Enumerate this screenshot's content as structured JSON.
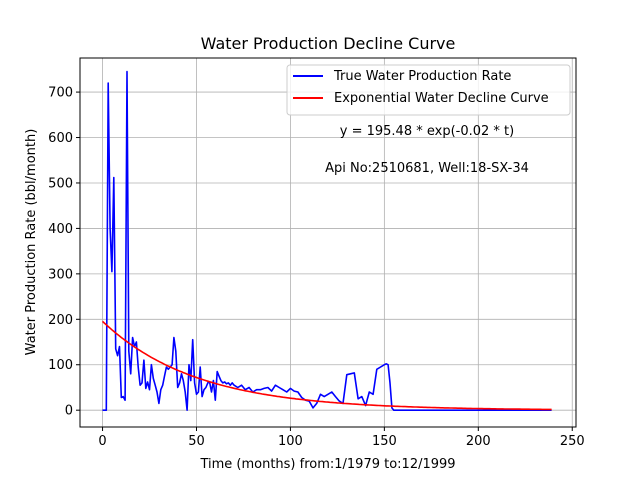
{
  "chart_data": {
    "type": "line",
    "title": "Water Production Decline Curve",
    "xlabel": "Time (months) from:1/1979 to:12/1999",
    "ylabel": "Water Production Rate (bbl/month)",
    "xlim": [
      -12,
      252
    ],
    "ylim": [
      -37,
      775
    ],
    "xticks": [
      0,
      50,
      100,
      150,
      200,
      250
    ],
    "yticks": [
      0,
      100,
      200,
      300,
      400,
      500,
      600,
      700
    ],
    "grid": true,
    "legend_position": "top-right",
    "annotations": [
      "y = 195.48 * exp(-0.02 * t)",
      "Api No:2510681, Well:18-SX-34"
    ],
    "series": [
      {
        "name": "True Water Production Rate",
        "color": "#0000ff",
        "x": [
          0,
          2,
          3,
          4,
          5,
          6,
          7,
          8,
          9,
          10,
          11,
          12,
          13,
          14,
          15,
          16,
          17,
          18,
          19,
          20,
          21,
          22,
          23,
          24,
          25,
          26,
          27,
          28,
          29,
          30,
          31,
          32,
          33,
          34,
          35,
          36,
          37,
          38,
          39,
          40,
          41,
          42,
          43,
          44,
          45,
          46,
          47,
          48,
          49,
          50,
          51,
          52,
          53,
          54,
          55,
          56,
          57,
          58,
          59,
          60,
          61,
          62,
          63,
          64,
          65,
          66,
          67,
          68,
          69,
          70,
          72,
          74,
          76,
          78,
          80,
          82,
          84,
          86,
          88,
          90,
          92,
          94,
          96,
          98,
          100,
          102,
          104,
          106,
          108,
          110,
          112,
          114,
          116,
          118,
          120,
          122,
          124,
          126,
          128,
          130,
          132,
          134,
          136,
          138,
          140,
          142,
          144,
          146,
          148,
          150,
          151,
          152,
          153,
          154,
          155,
          156,
          157,
          239
        ],
        "values": [
          0,
          0,
          720,
          400,
          305,
          512,
          135,
          120,
          140,
          28,
          30,
          22,
          745,
          130,
          80,
          160,
          140,
          150,
          95,
          55,
          60,
          110,
          48,
          62,
          45,
          100,
          70,
          55,
          40,
          15,
          45,
          55,
          75,
          95,
          90,
          95,
          100,
          160,
          130,
          50,
          60,
          80,
          65,
          40,
          0,
          100,
          65,
          155,
          60,
          35,
          40,
          95,
          30,
          45,
          50,
          60,
          62,
          40,
          65,
          22,
          85,
          75,
          65,
          60,
          62,
          58,
          60,
          55,
          60,
          55,
          50,
          55,
          45,
          50,
          40,
          45,
          45,
          48,
          50,
          42,
          55,
          50,
          45,
          40,
          48,
          42,
          40,
          28,
          22,
          20,
          5,
          15,
          35,
          30,
          35,
          40,
          30,
          20,
          15,
          78,
          80,
          82,
          25,
          30,
          10,
          40,
          35,
          90,
          95,
          100,
          102,
          100,
          60,
          5,
          0,
          0,
          0,
          0
        ]
      },
      {
        "name": "Exponential Water Decline Curve",
        "color": "#ff0000",
        "fit": {
          "a": 195.48,
          "b": 0.02,
          "x_start": 0,
          "x_end": 239
        }
      }
    ]
  }
}
